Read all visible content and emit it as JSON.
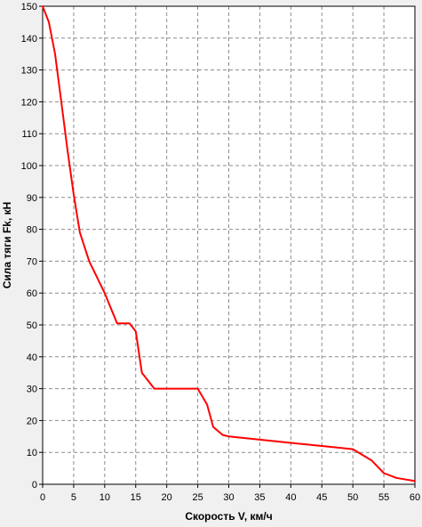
{
  "chart_data": {
    "type": "line",
    "title": "",
    "xlabel": "Скорость V, км/ч",
    "ylabel": "Сила тяги Fk, кН",
    "xlim": [
      0,
      60
    ],
    "ylim": [
      0,
      150
    ],
    "x_ticks": [
      0,
      5,
      10,
      15,
      20,
      25,
      30,
      35,
      40,
      45,
      50,
      55,
      60
    ],
    "y_ticks": [
      0,
      10,
      20,
      30,
      40,
      50,
      60,
      70,
      80,
      90,
      100,
      110,
      120,
      130,
      140,
      150
    ],
    "grid": true,
    "legend": "none",
    "series": [
      {
        "color": "#ff0000",
        "x": [
          0,
          1,
          2,
          3,
          4,
          5,
          6,
          7.5,
          10,
          12,
          14,
          15,
          16,
          18,
          20,
          25,
          26.5,
          27.5,
          29,
          30,
          35,
          40,
          45,
          50,
          53,
          55,
          57,
          60
        ],
        "y": [
          150,
          145,
          135,
          120,
          105,
          91,
          79,
          70,
          60,
          50.5,
          50.5,
          48,
          35,
          30,
          30,
          30,
          25,
          18,
          15.5,
          15,
          14,
          13,
          12,
          11,
          7.5,
          3.5,
          2,
          1
        ]
      }
    ]
  }
}
